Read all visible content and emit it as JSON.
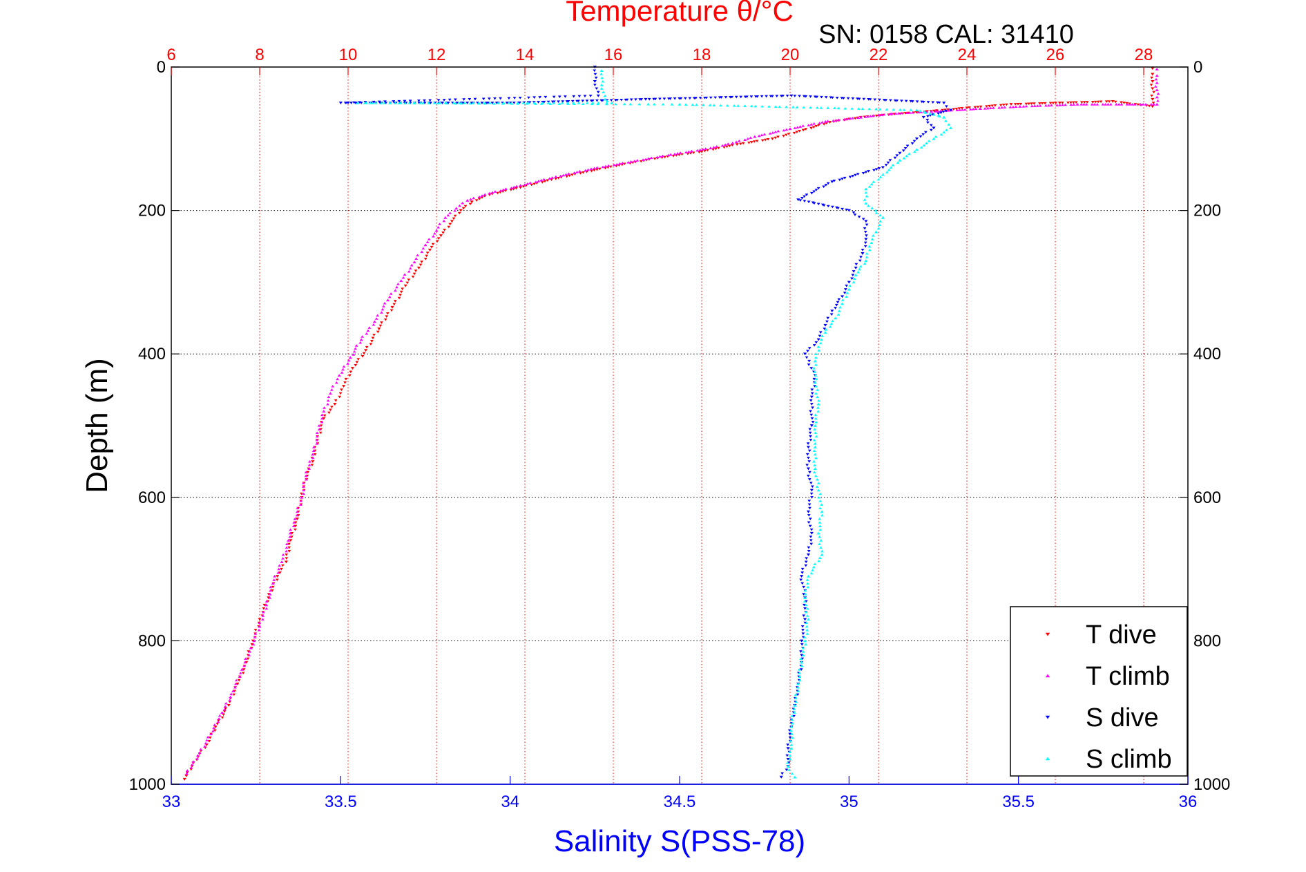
{
  "chart_data": {
    "type": "scatter",
    "title": "Temperature θ/°C",
    "subtitle": "SN: 0158  CAL: 31410",
    "ylabel": "Depth (m)",
    "xlabel_bottom": "Salinity S(PSS-78)",
    "y_axis": {
      "ylim": [
        0,
        1000
      ],
      "reversed": true,
      "ticks": [
        "0",
        "200",
        "400",
        "600",
        "800",
        "1000"
      ]
    },
    "x_top": {
      "label": "Temperature θ/°C",
      "xlim": [
        6,
        29
      ],
      "ticks": [
        "6",
        "8",
        "10",
        "12",
        "14",
        "16",
        "18",
        "20",
        "22",
        "24",
        "26",
        "28"
      ],
      "color": "#ff0000",
      "grid": true
    },
    "x_bottom": {
      "label": "Salinity S(PSS-78)",
      "xlim": [
        33,
        36
      ],
      "ticks": [
        "33",
        "33.5",
        "34",
        "34.5",
        "35",
        "35.5",
        "36"
      ],
      "color": "#0000ff"
    },
    "y_grid": true,
    "legend_placement": "bottom-right",
    "legend": [
      "T dive",
      "T climb",
      "S dive",
      "S climb"
    ],
    "series": [
      {
        "name": "T dive",
        "axis": "temperature",
        "color": "#ff0000",
        "marker": "triangle-down",
        "points": [
          [
            28.2,
            2
          ],
          [
            28.2,
            10
          ],
          [
            28.2,
            20
          ],
          [
            28.2,
            30
          ],
          [
            28.2,
            45
          ],
          [
            28.2,
            55
          ],
          [
            27.3,
            48
          ],
          [
            26.1,
            50
          ],
          [
            25.0,
            52
          ],
          [
            24.0,
            57
          ],
          [
            23.1,
            62
          ],
          [
            22.3,
            66
          ],
          [
            21.6,
            70
          ],
          [
            20.9,
            77
          ],
          [
            20.3,
            88
          ],
          [
            19.6,
            100
          ],
          [
            18.8,
            108
          ],
          [
            18.0,
            118
          ],
          [
            17.0,
            127
          ],
          [
            16.2,
            136
          ],
          [
            15.4,
            146
          ],
          [
            14.6,
            157
          ],
          [
            13.9,
            168
          ],
          [
            13.2,
            178
          ],
          [
            12.8,
            188
          ],
          [
            12.55,
            200
          ],
          [
            12.35,
            215
          ],
          [
            12.1,
            235
          ],
          [
            11.85,
            255
          ],
          [
            11.6,
            280
          ],
          [
            11.3,
            305
          ],
          [
            11.0,
            335
          ],
          [
            10.7,
            365
          ],
          [
            10.4,
            395
          ],
          [
            10.1,
            420
          ],
          [
            9.9,
            445
          ],
          [
            9.7,
            470
          ],
          [
            9.45,
            490
          ],
          [
            9.3,
            520
          ],
          [
            9.2,
            550
          ],
          [
            9.0,
            580
          ],
          [
            8.95,
            600
          ],
          [
            8.85,
            630
          ],
          [
            8.7,
            660
          ],
          [
            8.6,
            690
          ],
          [
            8.4,
            710
          ],
          [
            8.2,
            740
          ],
          [
            8.0,
            770
          ],
          [
            7.85,
            800
          ],
          [
            7.7,
            830
          ],
          [
            7.5,
            860
          ],
          [
            7.3,
            890
          ],
          [
            7.0,
            920
          ],
          [
            6.8,
            945
          ],
          [
            6.5,
            970
          ],
          [
            6.3,
            993
          ]
        ]
      },
      {
        "name": "T climb",
        "axis": "temperature",
        "color": "#ff00ff",
        "marker": "triangle-up",
        "points": [
          [
            28.3,
            3
          ],
          [
            28.3,
            12
          ],
          [
            28.3,
            22
          ],
          [
            28.3,
            32
          ],
          [
            28.3,
            42
          ],
          [
            28.3,
            52
          ],
          [
            26.5,
            52
          ],
          [
            25.2,
            55
          ],
          [
            24.3,
            58
          ],
          [
            23.2,
            62
          ],
          [
            22.3,
            65
          ],
          [
            21.6,
            70
          ],
          [
            20.8,
            76
          ],
          [
            20.0,
            86
          ],
          [
            19.2,
            97
          ],
          [
            18.7,
            106
          ],
          [
            18.2,
            113
          ],
          [
            17.3,
            122
          ],
          [
            16.4,
            132
          ],
          [
            15.5,
            142
          ],
          [
            14.7,
            153
          ],
          [
            13.9,
            165
          ],
          [
            13.2,
            176
          ],
          [
            12.7,
            186
          ],
          [
            12.45,
            197
          ],
          [
            12.2,
            210
          ],
          [
            12.0,
            228
          ],
          [
            11.75,
            248
          ],
          [
            11.5,
            272
          ],
          [
            11.2,
            298
          ],
          [
            10.9,
            325
          ],
          [
            10.6,
            355
          ],
          [
            10.3,
            380
          ],
          [
            10.05,
            405
          ],
          [
            9.8,
            430
          ],
          [
            9.6,
            455
          ],
          [
            9.45,
            480
          ],
          [
            9.35,
            505
          ],
          [
            9.2,
            540
          ],
          [
            9.05,
            570
          ],
          [
            8.95,
            600
          ],
          [
            8.8,
            630
          ],
          [
            8.65,
            660
          ],
          [
            8.5,
            690
          ],
          [
            8.3,
            720
          ],
          [
            8.15,
            750
          ],
          [
            8.0,
            780
          ],
          [
            7.8,
            810
          ],
          [
            7.6,
            840
          ],
          [
            7.4,
            870
          ],
          [
            7.15,
            900
          ],
          [
            6.9,
            930
          ],
          [
            6.6,
            960
          ],
          [
            6.35,
            985
          ]
        ]
      },
      {
        "name": "S dive",
        "axis": "salinity",
        "color": "#0000ff",
        "marker": "triangle-down",
        "points": [
          [
            34.25,
            0
          ],
          [
            34.25,
            20
          ],
          [
            34.26,
            40
          ],
          [
            33.5,
            50
          ],
          [
            33.8,
            50
          ],
          [
            34.0,
            50
          ],
          [
            34.4,
            45
          ],
          [
            34.83,
            40
          ],
          [
            35.28,
            50
          ],
          [
            35.3,
            60
          ],
          [
            35.22,
            70
          ],
          [
            35.25,
            85
          ],
          [
            35.2,
            100
          ],
          [
            35.15,
            120
          ],
          [
            35.1,
            140
          ],
          [
            34.95,
            160
          ],
          [
            34.85,
            185
          ],
          [
            35.0,
            200
          ],
          [
            35.05,
            215
          ],
          [
            35.05,
            240
          ],
          [
            35.04,
            260
          ],
          [
            35.02,
            280
          ],
          [
            35.0,
            300
          ],
          [
            34.98,
            320
          ],
          [
            34.95,
            340
          ],
          [
            34.93,
            360
          ],
          [
            34.91,
            380
          ],
          [
            34.87,
            400
          ],
          [
            34.9,
            430
          ],
          [
            34.89,
            460
          ],
          [
            34.89,
            500
          ],
          [
            34.88,
            530
          ],
          [
            34.88,
            560
          ],
          [
            34.89,
            590
          ],
          [
            34.88,
            620
          ],
          [
            34.89,
            650
          ],
          [
            34.88,
            680
          ],
          [
            34.86,
            710
          ],
          [
            34.87,
            740
          ],
          [
            34.87,
            770
          ],
          [
            34.86,
            800
          ],
          [
            34.86,
            830
          ],
          [
            34.85,
            860
          ],
          [
            34.84,
            890
          ],
          [
            34.83,
            920
          ],
          [
            34.82,
            950
          ],
          [
            34.82,
            975
          ],
          [
            34.8,
            990
          ]
        ]
      },
      {
        "name": "S climb",
        "axis": "salinity",
        "color": "#00ffff",
        "marker": "triangle-up",
        "points": [
          [
            34.27,
            5
          ],
          [
            34.27,
            25
          ],
          [
            34.28,
            45
          ],
          [
            34.3,
            50
          ],
          [
            33.55,
            50
          ],
          [
            34.5,
            52
          ],
          [
            35.2,
            60
          ],
          [
            35.28,
            70
          ],
          [
            35.3,
            85
          ],
          [
            35.25,
            100
          ],
          [
            35.2,
            115
          ],
          [
            35.15,
            130
          ],
          [
            35.1,
            150
          ],
          [
            35.05,
            170
          ],
          [
            35.05,
            190
          ],
          [
            35.1,
            210
          ],
          [
            35.08,
            230
          ],
          [
            35.06,
            250
          ],
          [
            35.05,
            270
          ],
          [
            35.02,
            290
          ],
          [
            35.0,
            310
          ],
          [
            34.98,
            330
          ],
          [
            34.96,
            350
          ],
          [
            34.93,
            370
          ],
          [
            34.91,
            390
          ],
          [
            34.9,
            410
          ],
          [
            34.9,
            440
          ],
          [
            34.91,
            470
          ],
          [
            34.9,
            500
          ],
          [
            34.9,
            530
          ],
          [
            34.9,
            560
          ],
          [
            34.91,
            590
          ],
          [
            34.92,
            620
          ],
          [
            34.91,
            650
          ],
          [
            34.92,
            680
          ],
          [
            34.88,
            710
          ],
          [
            34.87,
            740
          ],
          [
            34.88,
            770
          ],
          [
            34.87,
            800
          ],
          [
            34.86,
            830
          ],
          [
            34.85,
            860
          ],
          [
            34.84,
            890
          ],
          [
            34.83,
            920
          ],
          [
            34.83,
            950
          ],
          [
            34.82,
            975
          ],
          [
            34.84,
            990
          ]
        ]
      }
    ]
  }
}
